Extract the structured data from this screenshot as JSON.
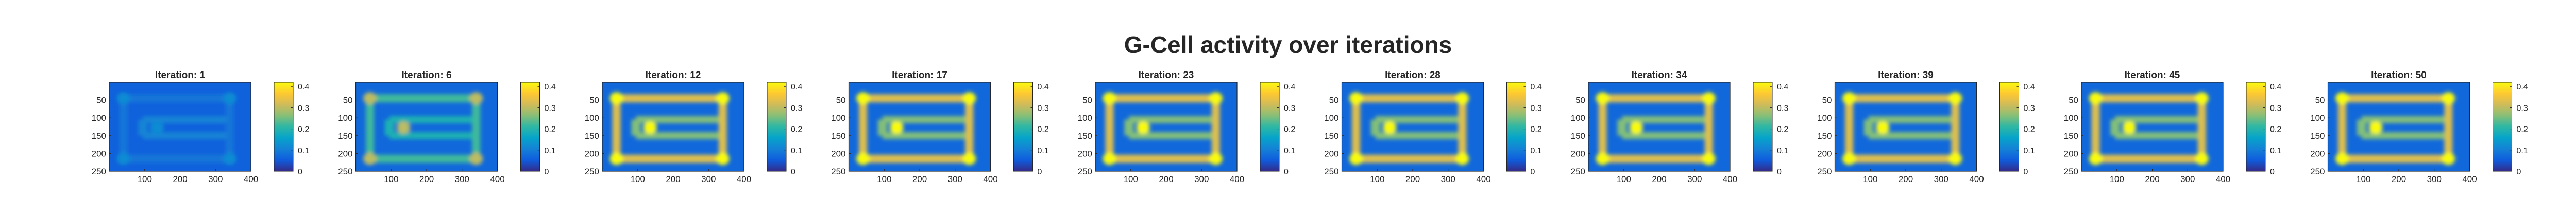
{
  "figure": {
    "title": "G-Cell activity over iterations"
  },
  "chart_data": {
    "type": "heatmap",
    "title": "G-Cell activity over iterations",
    "subplot_title_prefix": "Iteration: ",
    "iterations": [
      1,
      6,
      12,
      17,
      23,
      28,
      34,
      39,
      45,
      50
    ],
    "xlim": [
      0,
      400
    ],
    "ylim": [
      250,
      0
    ],
    "xticks": [
      100,
      200,
      300,
      400
    ],
    "yticks": [
      50,
      100,
      150,
      200,
      250
    ],
    "colorbar": {
      "clim": [
        0,
        0.42
      ],
      "ticks": [
        0,
        0.1,
        0.2,
        0.3,
        0.4
      ],
      "tick_labels": [
        "0",
        "0.1",
        "0.2",
        "0.3",
        "0.4"
      ],
      "colormap": "parula",
      "colors": [
        "#352a87",
        "#0f5cdd",
        "#1481d6",
        "#06a4ca",
        "#2eb7a4",
        "#87bf77",
        "#d1bb59",
        "#fec832",
        "#f9fb0e"
      ]
    },
    "pattern": {
      "description_free": true,
      "outer_ring": {
        "x": [
          40,
          340
        ],
        "y": [
          45,
          215
        ]
      },
      "inner_bar_y": [
        105,
        150
      ],
      "inner_bar_x": [
        95,
        330
      ],
      "hotspots_x": [
        40,
        135,
        340
      ]
    },
    "level_by_iteration": {
      "1": {
        "background": 0.06,
        "outer_ring": 0.09,
        "inner": 0.11,
        "hotspot": 0.12
      },
      "6": {
        "background": 0.07,
        "outer_ring": 0.22,
        "inner": 0.19,
        "hotspot": 0.3
      },
      "12": {
        "background": 0.07,
        "outer_ring": 0.33,
        "inner": 0.26,
        "hotspot": 0.42
      },
      "17": {
        "background": 0.07,
        "outer_ring": 0.33,
        "inner": 0.26,
        "hotspot": 0.42
      },
      "23": {
        "background": 0.07,
        "outer_ring": 0.33,
        "inner": 0.26,
        "hotspot": 0.42
      },
      "28": {
        "background": 0.07,
        "outer_ring": 0.33,
        "inner": 0.26,
        "hotspot": 0.42
      },
      "34": {
        "background": 0.07,
        "outer_ring": 0.33,
        "inner": 0.26,
        "hotspot": 0.42
      },
      "39": {
        "background": 0.07,
        "outer_ring": 0.33,
        "inner": 0.26,
        "hotspot": 0.42
      },
      "45": {
        "background": 0.07,
        "outer_ring": 0.33,
        "inner": 0.26,
        "hotspot": 0.42
      },
      "50": {
        "background": 0.07,
        "outer_ring": 0.33,
        "inner": 0.26,
        "hotspot": 0.42
      }
    }
  }
}
